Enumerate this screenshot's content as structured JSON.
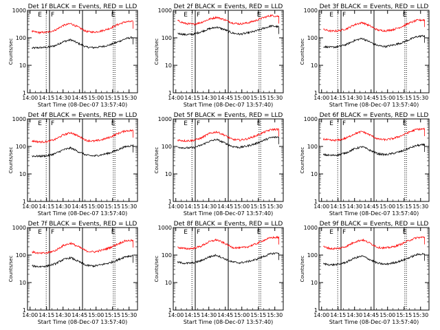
{
  "figure": {
    "ylabel": "Counts/sec",
    "xlabel": "Start Time (08-Dec-07 13:57:40)",
    "x_ticks": [
      "14:00",
      "14:15",
      "14:30",
      "14:45",
      "15:00",
      "15:15",
      "15:30"
    ],
    "y_ticks": [
      "1",
      "10",
      "100",
      "1000"
    ],
    "colors": {
      "events": "#000000",
      "lld": "#ff0000"
    }
  },
  "chart_data": [
    {
      "type": "line",
      "title": "Det 1f BLACK = Events, RED = LLD",
      "yscale": "log",
      "ylim": [
        1,
        1000
      ],
      "xlim_min": [
        0,
        100
      ],
      "markers": {
        "dotted": [
          17,
          78
        ],
        "solid": [
          20,
          50
        ],
        "labels": [
          "E",
          "F",
          "E"
        ]
      },
      "series": [
        {
          "name": "BLACK = Events",
          "y": [
            42,
            44,
            45,
            52,
            72,
            85,
            62,
            46,
            44,
            48,
            55,
            70,
            92,
            105
          ]
        },
        {
          "name": "RED = LLD",
          "y": [
            170,
            155,
            160,
            190,
            280,
            330,
            240,
            170,
            160,
            180,
            220,
            300,
            380,
            390
          ]
        }
      ]
    },
    {
      "type": "line",
      "title": "Det 2f BLACK = Events, RED = LLD",
      "yscale": "log",
      "ylim": [
        1,
        1000
      ],
      "xlim_min": [
        0,
        100
      ],
      "markers": {
        "dotted": [
          17,
          78
        ],
        "solid": [
          20,
          50
        ],
        "labels": [
          "E",
          "F",
          "E"
        ]
      },
      "series": [
        {
          "name": "BLACK = Events",
          "y": [
            145,
            130,
            135,
            165,
            210,
            245,
            200,
            150,
            135,
            150,
            175,
            220,
            270,
            250
          ]
        },
        {
          "name": "RED = LLD",
          "y": [
            420,
            330,
            310,
            360,
            470,
            560,
            460,
            350,
            320,
            350,
            420,
            540,
            650,
            600
          ]
        }
      ]
    },
    {
      "type": "line",
      "title": "Det 3f BLACK = Events, RED = LLD",
      "yscale": "log",
      "ylim": [
        1,
        1000
      ],
      "xlim_min": [
        0,
        100
      ],
      "markers": {
        "dotted": [
          17,
          78
        ],
        "solid": [
          20,
          50
        ],
        "labels": [
          "E",
          "F",
          "E"
        ]
      },
      "series": [
        {
          "name": "BLACK = Events",
          "y": [
            48,
            45,
            48,
            58,
            80,
            95,
            70,
            52,
            48,
            55,
            65,
            85,
            110,
            120
          ]
        },
        {
          "name": "RED = LLD",
          "y": [
            200,
            175,
            180,
            215,
            300,
            360,
            270,
            190,
            180,
            200,
            250,
            340,
            430,
            450
          ]
        }
      ]
    },
    {
      "type": "line",
      "title": "Det 4f BLACK = Events, RED = LLD",
      "yscale": "log",
      "ylim": [
        1,
        1000
      ],
      "xlim_min": [
        0,
        100
      ],
      "markers": {
        "dotted": [
          17,
          78
        ],
        "solid": [
          20,
          50
        ],
        "labels": [
          "E",
          "F",
          "E"
        ]
      },
      "series": [
        {
          "name": "BLACK = Events",
          "y": [
            45,
            44,
            46,
            55,
            75,
            88,
            64,
            48,
            45,
            50,
            58,
            75,
            98,
            110
          ]
        },
        {
          "name": "RED = LLD",
          "y": [
            160,
            145,
            150,
            180,
            260,
            320,
            235,
            165,
            155,
            175,
            215,
            290,
            370,
            380
          ]
        }
      ]
    },
    {
      "type": "line",
      "title": "Det 5f BLACK = Events, RED = LLD",
      "yscale": "log",
      "ylim": [
        1,
        1000
      ],
      "xlim_min": [
        0,
        100
      ],
      "markers": {
        "dotted": [
          17,
          78
        ],
        "solid": [
          20,
          50
        ],
        "labels": [
          "E",
          "F",
          "E"
        ]
      },
      "series": [
        {
          "name": "BLACK = Events",
          "y": [
            95,
            88,
            90,
            110,
            150,
            180,
            135,
            100,
            92,
            105,
            125,
            165,
            210,
            220
          ]
        },
        {
          "name": "RED = LLD",
          "y": [
            170,
            160,
            165,
            200,
            290,
            340,
            260,
            180,
            170,
            190,
            240,
            320,
            410,
            420
          ]
        }
      ]
    },
    {
      "type": "line",
      "title": "Det 6f BLACK = Events, RED = LLD",
      "yscale": "log",
      "ylim": [
        1,
        1000
      ],
      "xlim_min": [
        0,
        100
      ],
      "markers": {
        "dotted": [
          17,
          78
        ],
        "solid": [
          20,
          50
        ],
        "labels": [
          "E",
          "F",
          "E"
        ]
      },
      "series": [
        {
          "name": "BLACK = Events",
          "y": [
            50,
            47,
            50,
            60,
            82,
            98,
            72,
            54,
            50,
            56,
            66,
            86,
            108,
            115
          ]
        },
        {
          "name": "RED = LLD",
          "y": [
            185,
            165,
            170,
            205,
            290,
            350,
            260,
            185,
            175,
            195,
            245,
            330,
            420,
            430
          ]
        }
      ]
    },
    {
      "type": "line",
      "title": "Det 7f BLACK = Events, RED = LLD",
      "yscale": "log",
      "ylim": [
        1,
        1000
      ],
      "xlim_min": [
        0,
        100
      ],
      "markers": {
        "dotted": [
          17,
          78
        ],
        "solid": [
          20,
          50
        ],
        "labels": [
          "E",
          "F",
          "E"
        ]
      },
      "series": [
        {
          "name": "BLACK = Events",
          "y": [
            40,
            38,
            40,
            48,
            68,
            80,
            58,
            42,
            40,
            45,
            52,
            66,
            88,
            95
          ]
        },
        {
          "name": "RED = LLD",
          "y": [
            130,
            115,
            120,
            145,
            220,
            270,
            200,
            140,
            130,
            150,
            185,
            250,
            330,
            340
          ]
        }
      ]
    },
    {
      "type": "line",
      "title": "Det 8f BLACK = Events, RED = LLD",
      "yscale": "log",
      "ylim": [
        1,
        1000
      ],
      "xlim_min": [
        0,
        100
      ],
      "markers": {
        "dotted": [
          17,
          78
        ],
        "solid": [
          20,
          50
        ],
        "labels": [
          "E",
          "F",
          "E"
        ]
      },
      "series": [
        {
          "name": "BLACK = Events",
          "y": [
            55,
            50,
            52,
            62,
            85,
            100,
            74,
            56,
            52,
            58,
            68,
            88,
            112,
            120
          ]
        },
        {
          "name": "RED = LLD",
          "y": [
            190,
            170,
            175,
            210,
            300,
            360,
            270,
            190,
            180,
            200,
            250,
            340,
            430,
            440
          ]
        }
      ]
    },
    {
      "type": "line",
      "title": "Det 9f BLACK = Events, RED = LLD",
      "yscale": "log",
      "ylim": [
        1,
        1000
      ],
      "xlim_min": [
        0,
        100
      ],
      "markers": {
        "dotted": [
          17,
          78
        ],
        "solid": [
          20,
          50
        ],
        "labels": [
          "E",
          "F",
          "E"
        ]
      },
      "series": [
        {
          "name": "BLACK = Events",
          "y": [
            48,
            44,
            46,
            56,
            78,
            92,
            68,
            50,
            46,
            52,
            62,
            80,
            104,
            112
          ]
        },
        {
          "name": "RED = LLD",
          "y": [
            200,
            170,
            175,
            210,
            300,
            360,
            270,
            190,
            180,
            200,
            250,
            340,
            430,
            445
          ]
        }
      ]
    }
  ]
}
